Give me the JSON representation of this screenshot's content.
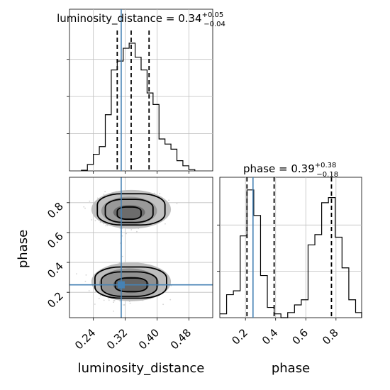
{
  "chart_data": {
    "type": "corner",
    "parameters": [
      "luminosity_distance",
      "phase"
    ],
    "colors": {
      "truth": "#4682b4",
      "hist": "#000000",
      "quantile": "#000000",
      "grid": "#bfbfbf",
      "points": "#b0b0b0"
    },
    "grid": true,
    "titles": {
      "luminosity_distance": {
        "label": "luminosity_distance",
        "eq": "=",
        "median": "0.34",
        "plus": "+0.05",
        "minus": "−0.04"
      },
      "phase": {
        "label": "phase",
        "eq": "=",
        "median": "0.39",
        "plus": "+0.38",
        "minus": "−0.18"
      }
    },
    "axes": {
      "luminosity_distance": {
        "label": "luminosity_distance",
        "range": [
          0.18,
          0.54
        ],
        "ticks": [
          0.24,
          0.32,
          0.4,
          0.48
        ],
        "tick_labels": [
          "0.24",
          "0.32",
          "0.40",
          "0.48"
        ]
      },
      "phase": {
        "label": "phase",
        "range": [
          0.03,
          0.97
        ],
        "ticks": [
          0.2,
          0.4,
          0.6,
          0.8
        ],
        "tick_labels": [
          "0.2",
          "0.4",
          "0.6",
          "0.8"
        ]
      }
    },
    "truth": {
      "luminosity_distance": 0.31,
      "phase": 0.25
    },
    "quantiles": {
      "luminosity_distance": [
        0.3,
        0.335,
        0.38
      ],
      "phase": [
        0.21,
        0.39,
        0.77
      ]
    },
    "hist_luminosity_distance": {
      "edges": [
        0.21,
        0.225,
        0.24,
        0.255,
        0.27,
        0.285,
        0.3,
        0.315,
        0.33,
        0.345,
        0.36,
        0.375,
        0.39,
        0.405,
        0.42,
        0.435,
        0.45,
        0.465,
        0.48,
        0.495
      ],
      "counts": [
        0.005,
        0.05,
        0.13,
        0.19,
        0.44,
        0.79,
        0.86,
        0.96,
        1.0,
        0.89,
        0.79,
        0.61,
        0.52,
        0.25,
        0.21,
        0.17,
        0.08,
        0.04,
        0.01
      ]
    },
    "hist_phase": {
      "edges": [
        0.03,
        0.075,
        0.12,
        0.165,
        0.21,
        0.255,
        0.3,
        0.345,
        0.39,
        0.435,
        0.48,
        0.525,
        0.57,
        0.615,
        0.66,
        0.705,
        0.75,
        0.795,
        0.84,
        0.885,
        0.93,
        0.97
      ],
      "counts": [
        0.03,
        0.18,
        0.21,
        0.64,
        1.0,
        0.8,
        0.33,
        0.08,
        0.03,
        0.0,
        0.04,
        0.1,
        0.14,
        0.57,
        0.65,
        0.9,
        0.94,
        0.63,
        0.39,
        0.14,
        0.04
      ]
    },
    "scatter_2d": {
      "modes": [
        {
          "x": 0.33,
          "y": 0.26,
          "sx": 0.038,
          "sy": 0.055,
          "n": 520
        },
        {
          "x": 0.33,
          "y": 0.75,
          "sx": 0.038,
          "sy": 0.055,
          "n": 520
        }
      ],
      "contours": [
        {
          "mode": 0,
          "ellipses": [
            [
              0.335,
              0.25,
              0.04,
              0.05
            ],
            [
              0.33,
              0.255,
              0.07,
              0.09
            ],
            [
              0.334,
              0.265,
              0.09,
              0.115
            ]
          ]
        },
        {
          "mode": 1,
          "ellipses": [
            [
              0.33,
              0.73,
              0.03,
              0.045
            ],
            [
              0.33,
              0.745,
              0.06,
              0.085
            ],
            [
              0.335,
              0.755,
              0.085,
              0.115
            ]
          ]
        }
      ],
      "density_cells": [
        {
          "x": 0.335,
          "y": 0.25,
          "w": 0.045,
          "h": 0.055,
          "level": 0.9
        },
        {
          "x": 0.33,
          "y": 0.26,
          "w": 0.075,
          "h": 0.1,
          "level": 0.6
        },
        {
          "x": 0.335,
          "y": 0.27,
          "w": 0.1,
          "h": 0.13,
          "level": 0.3
        },
        {
          "x": 0.33,
          "y": 0.735,
          "w": 0.04,
          "h": 0.05,
          "level": 0.85
        },
        {
          "x": 0.33,
          "y": 0.745,
          "w": 0.07,
          "h": 0.095,
          "level": 0.55
        },
        {
          "x": 0.335,
          "y": 0.755,
          "w": 0.1,
          "h": 0.13,
          "level": 0.28
        }
      ]
    }
  }
}
